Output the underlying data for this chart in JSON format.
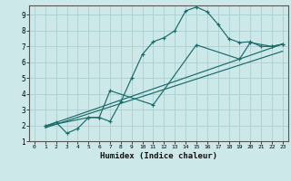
{
  "xlabel": "Humidex (Indice chaleur)",
  "ylabel": "",
  "bg_color": "#cce8e8",
  "grid_color": "#aacfcf",
  "line_color": "#1a6b6b",
  "xlim": [
    -0.5,
    23.5
  ],
  "ylim": [
    1,
    9.6
  ],
  "xticks": [
    0,
    1,
    2,
    3,
    4,
    5,
    6,
    7,
    8,
    9,
    10,
    11,
    12,
    13,
    14,
    15,
    16,
    17,
    18,
    19,
    20,
    21,
    22,
    23
  ],
  "yticks": [
    1,
    2,
    3,
    4,
    5,
    6,
    7,
    8,
    9
  ],
  "line1_x": [
    1,
    2,
    3,
    4,
    5,
    6,
    7,
    8,
    9,
    10,
    11,
    12,
    13,
    14,
    15,
    16,
    17,
    18,
    19,
    20,
    21,
    22,
    23
  ],
  "line1_y": [
    1.95,
    2.2,
    1.5,
    1.8,
    2.5,
    2.5,
    2.25,
    3.5,
    5.0,
    6.5,
    7.3,
    7.55,
    8.0,
    9.25,
    9.5,
    9.2,
    8.4,
    7.5,
    7.25,
    7.3,
    7.0,
    7.0,
    7.15
  ],
  "line2_x": [
    1,
    5,
    6,
    7,
    11,
    15,
    19,
    20,
    22,
    23
  ],
  "line2_y": [
    1.95,
    2.5,
    2.5,
    4.2,
    3.3,
    7.1,
    6.2,
    7.25,
    7.0,
    7.15
  ],
  "line3_x": [
    1,
    23
  ],
  "line3_y": [
    1.95,
    7.15
  ],
  "line4_x": [
    1,
    23
  ],
  "line4_y": [
    1.85,
    6.7
  ]
}
